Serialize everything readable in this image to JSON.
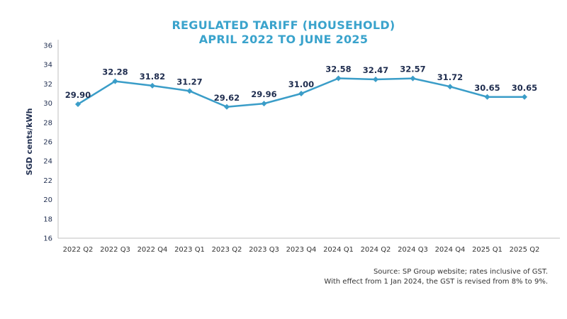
{
  "chart_data": {
    "type": "line",
    "title": "REGULATED TARIFF (HOUSEHOLD)",
    "subtitle": "APRIL 2022 TO JUNE 2025",
    "ylabel": "SGD cents/kWh",
    "xlabel": "",
    "ylim": [
      16,
      36
    ],
    "yticks": [
      16,
      18,
      20,
      22,
      24,
      26,
      28,
      30,
      32,
      34,
      36
    ],
    "grid": false,
    "categories": [
      "2022 Q2",
      "2022 Q3",
      "2022 Q4",
      "2023 Q1",
      "2023 Q2",
      "2023 Q3",
      "2023 Q4",
      "2024 Q1",
      "2024 Q2",
      "2024 Q3",
      "2024 Q4",
      "2025 Q1",
      "2025 Q2"
    ],
    "series": [
      {
        "values": [
          29.9,
          32.28,
          31.82,
          31.27,
          29.62,
          29.96,
          31.0,
          32.58,
          32.47,
          32.57,
          31.72,
          30.65,
          30.65
        ],
        "labels": [
          "29.90",
          "32.28",
          "31.82",
          "31.27",
          "29.62",
          "29.96",
          "31.00",
          "32.58",
          "32.47",
          "32.57",
          "31.72",
          "30.65",
          "30.65"
        ],
        "color": "#3A9DC8"
      }
    ],
    "label_color": "#1F2D4F"
  },
  "footnote": {
    "line1": "Source: SP Group website; rates inclusive of GST.",
    "line2": "With effect from 1 Jan 2024, the GST is revised from 8% to 9%."
  }
}
